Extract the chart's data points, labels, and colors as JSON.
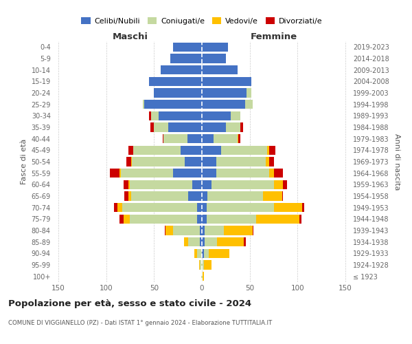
{
  "age_groups": [
    "100+",
    "95-99",
    "90-94",
    "85-89",
    "80-84",
    "75-79",
    "70-74",
    "65-69",
    "60-64",
    "55-59",
    "50-54",
    "45-49",
    "40-44",
    "35-39",
    "30-34",
    "25-29",
    "20-24",
    "15-19",
    "10-14",
    "5-9",
    "0-4"
  ],
  "birth_years": [
    "≤ 1923",
    "1924-1928",
    "1929-1933",
    "1934-1938",
    "1939-1943",
    "1944-1948",
    "1949-1953",
    "1954-1958",
    "1959-1963",
    "1964-1968",
    "1969-1973",
    "1974-1978",
    "1979-1983",
    "1984-1988",
    "1989-1993",
    "1994-1998",
    "1999-2003",
    "2004-2008",
    "2009-2013",
    "2014-2018",
    "2019-2023"
  ],
  "males": {
    "celibi": [
      0,
      0,
      0,
      2,
      2,
      5,
      5,
      14,
      10,
      30,
      18,
      22,
      15,
      35,
      45,
      60,
      50,
      55,
      43,
      33,
      30
    ],
    "coniugati": [
      1,
      2,
      5,
      12,
      28,
      70,
      78,
      60,
      65,
      55,
      55,
      50,
      25,
      15,
      8,
      2,
      0,
      0,
      0,
      0,
      0
    ],
    "vedovi": [
      0,
      1,
      3,
      5,
      8,
      7,
      5,
      3,
      2,
      1,
      1,
      0,
      0,
      0,
      0,
      0,
      0,
      0,
      0,
      0,
      0
    ],
    "divorziati": [
      0,
      0,
      0,
      0,
      1,
      4,
      4,
      4,
      5,
      10,
      5,
      5,
      1,
      4,
      2,
      0,
      0,
      0,
      0,
      0,
      0
    ]
  },
  "females": {
    "nubili": [
      0,
      0,
      2,
      3,
      3,
      5,
      5,
      6,
      10,
      15,
      15,
      20,
      12,
      25,
      30,
      45,
      47,
      52,
      37,
      25,
      27
    ],
    "coniugate": [
      1,
      2,
      5,
      13,
      20,
      52,
      70,
      58,
      65,
      55,
      52,
      48,
      25,
      15,
      10,
      8,
      5,
      0,
      0,
      0,
      0
    ],
    "vedove": [
      1,
      8,
      22,
      28,
      30,
      45,
      30,
      20,
      10,
      5,
      3,
      2,
      1,
      0,
      0,
      0,
      0,
      0,
      0,
      0,
      0
    ],
    "divorziate": [
      0,
      0,
      0,
      2,
      1,
      2,
      2,
      1,
      4,
      10,
      5,
      7,
      2,
      3,
      0,
      0,
      0,
      0,
      0,
      0,
      0
    ]
  },
  "colors": {
    "celibi": "#4472c4",
    "coniugati": "#c5d9a0",
    "vedovi": "#ffc000",
    "divorziati": "#cc0000"
  },
  "legend_labels": [
    "Celibi/Nubili",
    "Coniugati/e",
    "Vedovi/e",
    "Divorziati/e"
  ],
  "title": "Popolazione per età, sesso e stato civile - 2024",
  "subtitle": "COMUNE DI VIGGIANELLO (PZ) - Dati ISTAT 1° gennaio 2024 - Elaborazione TUTTITALIA.IT",
  "xlabel_left": "Maschi",
  "xlabel_right": "Femmine",
  "ylabel_left": "Fasce di età",
  "ylabel_right": "Anni di nascita",
  "xlim": 155,
  "bg_color": "#ffffff",
  "grid_color": "#cccccc"
}
